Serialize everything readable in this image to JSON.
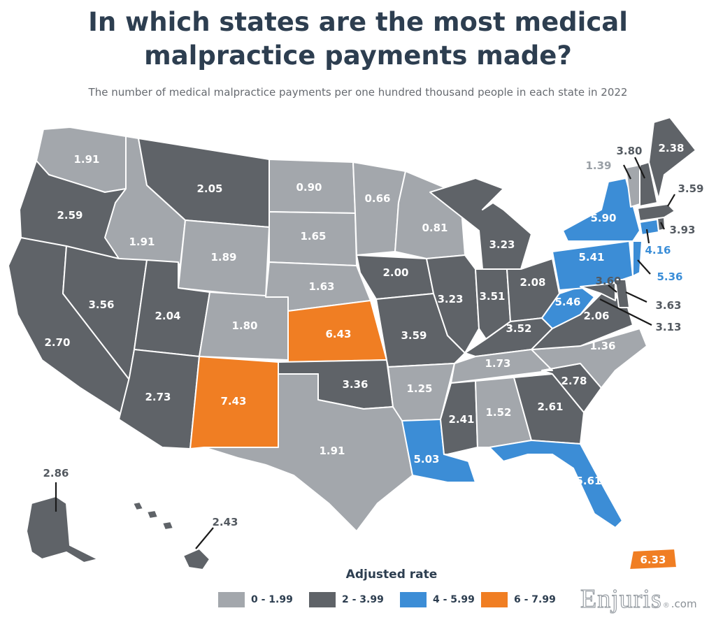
{
  "title_line1": "In which states are the most medical",
  "title_line2": "malpractice payments made?",
  "subtitle": "The number of medical malpractice payments per one hundred thousand people in each state in 2022",
  "legend": {
    "title": "Adjusted rate",
    "items": [
      {
        "label": "0 - 1.99",
        "color": "#a3a7ac"
      },
      {
        "label": "2 - 3.99",
        "color": "#5f6368"
      },
      {
        "label": "4 - 5.99",
        "color": "#3c8dd6"
      },
      {
        "label": "6 - 7.99",
        "color": "#f07e23"
      }
    ]
  },
  "brand": {
    "name": "Enjuris",
    "reg": "®",
    "tld": ".com"
  },
  "colors": {
    "light": "#a3a7ac",
    "dark": "#5f6368",
    "blue": "#3c8dd6",
    "orange": "#f07e23"
  },
  "states": {
    "WA": "1.91",
    "OR": "2.59",
    "CA": "2.70",
    "ID": "1.91",
    "NV": "3.56",
    "MT": "2.05",
    "WY": "1.89",
    "UT": "2.04",
    "AZ": "2.73",
    "CO": "1.80",
    "NM": "7.43",
    "ND": "0.90",
    "SD": "1.65",
    "NE": "1.63",
    "KS": "6.43",
    "OK": "3.36",
    "TX": "1.91",
    "MN": "0.66",
    "IA": "2.00",
    "MO": "3.59",
    "AR": "1.25",
    "LA": "5.03",
    "WI": "0.81",
    "IL": "3.23",
    "MI": "3.23",
    "IN": "3.51",
    "OH": "2.08",
    "KY": "3.52",
    "TN": "1.73",
    "MS": "2.41",
    "AL": "1.52",
    "GA": "2.61",
    "FL": "5.61",
    "SC": "2.78",
    "NC": "1.36",
    "VA": "2.06",
    "WV": "5.46",
    "PA": "5.41",
    "NY": "5.90",
    "MD": "3.60",
    "DE": "3.63",
    "DC": "3.13",
    "NJ": "5.36",
    "CT": "4.16",
    "RI": "3.93",
    "MA": "3.59",
    "VT": "1.39",
    "NH": "3.80",
    "ME": "2.38",
    "AK": "2.86",
    "HI": "2.43",
    "PR": "6.33"
  }
}
